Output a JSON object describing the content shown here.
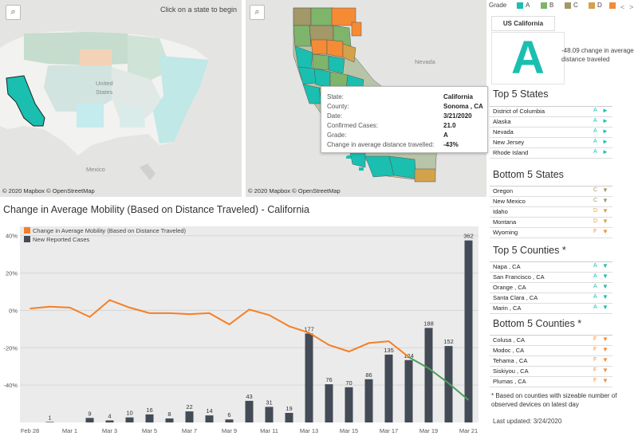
{
  "us_map": {
    "hint": "Click on a state to begin",
    "copyright": "© 2020 Mapbox © OpenStreetMap",
    "label_mexico": "Mexico",
    "label_united": "United",
    "label_states": "States"
  },
  "ca_map": {
    "copyright": "© 2020 Mapbox © OpenStreetMap",
    "label_nevada": "Nevada"
  },
  "tooltip": {
    "rows": [
      {
        "key": "State:",
        "value": "California"
      },
      {
        "key": "County:",
        "value": "Sonoma , CA"
      },
      {
        "key": "Date:",
        "value": "3/21/2020"
      },
      {
        "key": "Confirmed Cases:",
        "value": "21.0"
      },
      {
        "key": "Grade:",
        "value": "A"
      },
      {
        "key": "Change in average distance travelled:",
        "value": "-43%"
      }
    ]
  },
  "chart_title": "Change in Average Mobility (Based on Distance Traveled) -  California",
  "colors": {
    "A": "#1abfb0",
    "B": "#7eb56a",
    "C": "#a29868",
    "D": "#d3a24a",
    "F": "#f58b35",
    "bar": "#434b56",
    "line": "#f57f26",
    "line_tail": "#4f9e5c"
  },
  "chart_data": {
    "type": "bar+line",
    "title": "Change in Average Mobility (Based on Distance Traveled) -  California",
    "legend": {
      "placement": "top-left",
      "entries": [
        "Change in Average Mobility (Based on Distance Traveled)",
        "New Reported Cases"
      ]
    },
    "x_tick_labels": [
      "Feb 28",
      "Mar 1",
      "Mar 3",
      "Mar 5",
      "Mar 7",
      "Mar 9",
      "Mar 11",
      "Mar 13",
      "Mar 15",
      "Mar 17",
      "Mar 19",
      "Mar 21"
    ],
    "y_tick_labels": [
      "40%",
      "20%",
      "0%",
      "-20%",
      "-40%"
    ],
    "ylim_percent": [
      -60,
      45
    ],
    "grid": "horizontal",
    "bars": {
      "values": [
        0,
        1,
        0,
        9,
        4,
        10,
        16,
        8,
        22,
        14,
        6,
        43,
        31,
        19,
        177,
        76,
        70,
        86,
        135,
        124,
        188,
        152,
        362
      ],
      "labels": [
        "",
        "1",
        "",
        "9",
        "4",
        "10",
        "16",
        "8",
        "22",
        "14",
        "6",
        "43",
        "31",
        "19",
        "177",
        "76",
        "70",
        "86",
        "135",
        "124",
        "188",
        "152",
        "362"
      ],
      "ymax": 390
    },
    "line": {
      "values": [
        1,
        2,
        1.5,
        -3.5,
        5.5,
        1.5,
        -1.5,
        -1.5,
        -2,
        -1.5,
        -7.5,
        0.5,
        -2.5,
        -8.5,
        -12,
        -18.5,
        -22,
        -17.5,
        -16.5,
        -25,
        -31,
        -39,
        -48
      ]
    }
  },
  "legend": {
    "label": "Grade",
    "items": [
      {
        "label": "A",
        "color": "#1abfb0"
      },
      {
        "label": "B",
        "color": "#7eb56a"
      },
      {
        "label": "C",
        "color": "#a29868"
      },
      {
        "label": "D",
        "color": "#d3a24a"
      },
      {
        "label": "F",
        "color": "#f58b35"
      }
    ],
    "nav_prev": "<",
    "nav_next": ">"
  },
  "us_summary": {
    "tab": "US California",
    "grade": "A",
    "desc": "-48.09 change in average distance traveled"
  },
  "top_states": {
    "title": "Top 5 States",
    "items": [
      {
        "name": "District of Columbia",
        "grade": "A",
        "arrow": "►"
      },
      {
        "name": "Alaska",
        "grade": "A",
        "arrow": "►"
      },
      {
        "name": "Nevada",
        "grade": "A",
        "arrow": "►"
      },
      {
        "name": "New Jersey",
        "grade": "A",
        "arrow": "►"
      },
      {
        "name": "Rhode Island",
        "grade": "A",
        "arrow": "►"
      }
    ]
  },
  "bottom_states": {
    "title": "Bottom 5 States",
    "items": [
      {
        "name": "Oregon",
        "grade": "C",
        "arrow": "▼"
      },
      {
        "name": "New Mexico",
        "grade": "C",
        "arrow": "▼"
      },
      {
        "name": "Idaho",
        "grade": "D",
        "arrow": "▼"
      },
      {
        "name": "Montana",
        "grade": "D",
        "arrow": "▼"
      },
      {
        "name": "Wyoming",
        "grade": "F",
        "arrow": "▼"
      }
    ]
  },
  "top_counties": {
    "title": "Top 5 Counties *",
    "items": [
      {
        "name": "Napa , CA",
        "grade": "A",
        "arrow": "▼"
      },
      {
        "name": "San Francisco , CA",
        "grade": "A",
        "arrow": "▼"
      },
      {
        "name": "Orange , CA",
        "grade": "A",
        "arrow": "▼"
      },
      {
        "name": "Santa Clara , CA",
        "grade": "A",
        "arrow": "▼"
      },
      {
        "name": "Marin , CA",
        "grade": "A",
        "arrow": "▼"
      }
    ]
  },
  "bottom_counties": {
    "title": "Bottom 5 Counties *",
    "items": [
      {
        "name": "Colusa , CA",
        "grade": "F",
        "arrow": "▼"
      },
      {
        "name": "Modoc , CA",
        "grade": "F",
        "arrow": "▼"
      },
      {
        "name": "Tehama , CA",
        "grade": "F",
        "arrow": "▼"
      },
      {
        "name": "Siskiyou , CA",
        "grade": "F",
        "arrow": "▼"
      },
      {
        "name": "Plumas , CA",
        "grade": "F",
        "arrow": "▼"
      }
    ]
  },
  "footnote": "* Based on counties with sizeable number of observed devices on latest day",
  "last_updated": "Last updated: 3/24/2020"
}
